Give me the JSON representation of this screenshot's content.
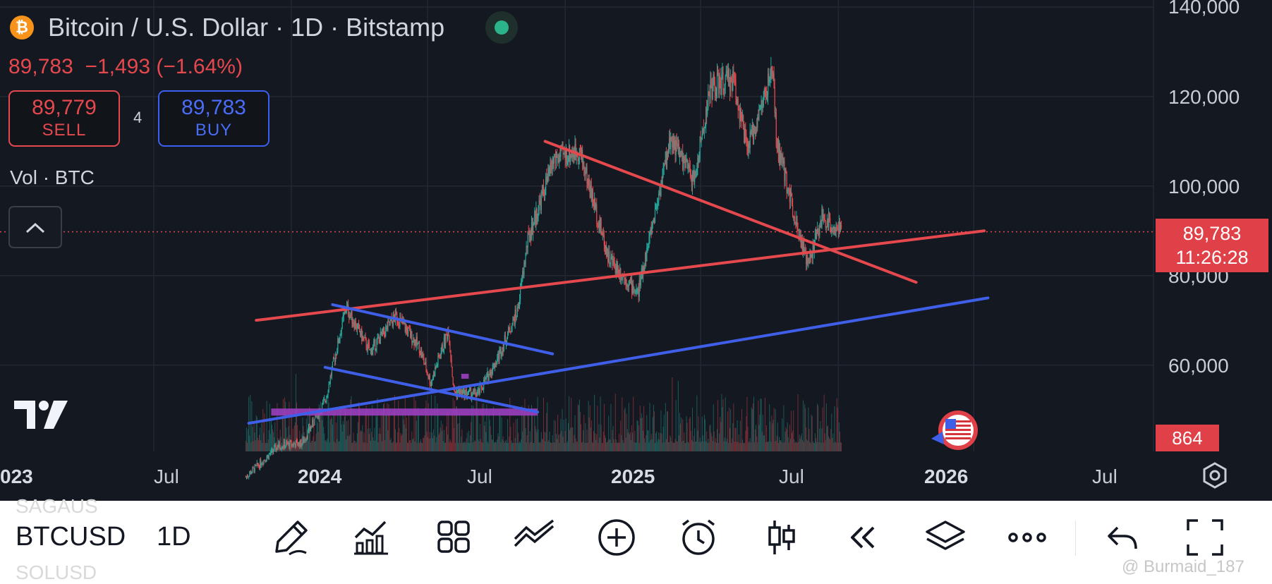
{
  "header": {
    "coin_icon": "bitcoin-icon",
    "title": "Bitcoin / U.S. Dollar · 1D · Bitstamp",
    "last_price": "89,783",
    "change": "−1,493",
    "change_pct": "(−1.64%)",
    "sell_price": "89,779",
    "sell_label": "SELL",
    "spread": "4",
    "buy_price": "89,783",
    "buy_label": "BUY",
    "volume_label": "Vol · BTC"
  },
  "colors": {
    "up": "#26a69a",
    "down": "#e5484d",
    "trend_red": "#e5484d",
    "trend_blue": "#3f5fe8",
    "zone_purple": "#9c3fc0",
    "background": "#141821"
  },
  "price_axis": {
    "ticks": [
      "140,000",
      "120,000",
      "100,000",
      "80,000",
      "60,000"
    ],
    "current_price": "89,783",
    "countdown": "11:26:28",
    "volume_value": "864"
  },
  "time_axis": {
    "ticks": [
      {
        "label": "023",
        "bold": true
      },
      {
        "label": "Jul",
        "bold": false
      },
      {
        "label": "2024",
        "bold": true
      },
      {
        "label": "Jul",
        "bold": false
      },
      {
        "label": "2025",
        "bold": true
      },
      {
        "label": "Jul",
        "bold": false
      },
      {
        "label": "2026",
        "bold": true
      },
      {
        "label": "Jul",
        "bold": false
      }
    ]
  },
  "chart_data": {
    "type": "candlestick",
    "symbol": "BTCUSD",
    "interval": "1D",
    "price_close_series": [
      [
        "2023-11-01",
        35000
      ],
      [
        "2023-12-15",
        42000
      ],
      [
        "2024-01-15",
        42500
      ],
      [
        "2024-02-15",
        52000
      ],
      [
        "2024-03-14",
        73000
      ],
      [
        "2024-04-15",
        63000
      ],
      [
        "2024-05-20",
        71000
      ],
      [
        "2024-06-20",
        64000
      ],
      [
        "2024-07-05",
        56000
      ],
      [
        "2024-07-29",
        68000
      ],
      [
        "2024-08-05",
        54000
      ],
      [
        "2024-09-06",
        53500
      ],
      [
        "2024-10-01",
        61000
      ],
      [
        "2024-10-29",
        72000
      ],
      [
        "2024-11-12",
        88000
      ],
      [
        "2024-12-17",
        106000
      ],
      [
        "2025-01-20",
        108000
      ],
      [
        "2025-02-28",
        84000
      ],
      [
        "2025-04-08",
        76000
      ],
      [
        "2025-05-22",
        111000
      ],
      [
        "2025-06-22",
        101000
      ],
      [
        "2025-07-14",
        122000
      ],
      [
        "2025-08-14",
        124000
      ],
      [
        "2025-09-01",
        108000
      ],
      [
        "2025-10-06",
        126000
      ],
      [
        "2025-10-10",
        110000
      ],
      [
        "2025-11-21",
        82000
      ],
      [
        "2025-12-10",
        93000
      ],
      [
        "2026-01-05",
        89783
      ]
    ],
    "ylim": [
      42000,
      140000
    ],
    "trendlines": [
      {
        "color": "red",
        "from": [
          "2023-11-15",
          70000
        ],
        "to": [
          "2026-07-15",
          90000
        ]
      },
      {
        "color": "red",
        "from": [
          "2024-12-05",
          110000
        ],
        "to": [
          "2026-04-15",
          78500
        ]
      },
      {
        "color": "blue",
        "from": [
          "2024-02-25",
          73500
        ],
        "to": [
          "2024-12-15",
          62500
        ]
      },
      {
        "color": "blue",
        "from": [
          "2024-02-15",
          59500
        ],
        "to": [
          "2024-11-25",
          49500
        ]
      },
      {
        "color": "blue",
        "from": [
          "2023-11-05",
          47000
        ],
        "to": [
          "2026-07-20",
          75000
        ]
      }
    ],
    "zones": [
      {
        "color": "purple",
        "price": 49500,
        "from": "2023-12-05",
        "to": "2024-11-25"
      },
      {
        "color": "purple",
        "price": 57500,
        "from": "2024-08-15",
        "to": "2024-08-25"
      }
    ],
    "current_price": 89783,
    "volume_last": 864,
    "grid": true
  },
  "toolbar": {
    "symbol": "BTCUSD",
    "interval": "1D",
    "ghost_above": "SAGAUS",
    "ghost_below": "SOLUSD",
    "icons": [
      "pencil-draw-icon",
      "indicators-chart-icon",
      "layout-grid-icon",
      "trend-tools-icon",
      "add-circle-icon",
      "alarm-clock-icon",
      "candles-icon",
      "replay-rewind-icon",
      "layers-icon",
      "more-dots-icon",
      "undo-icon",
      "fullscreen-icon"
    ],
    "watermark": "@ Burmaid_187"
  }
}
